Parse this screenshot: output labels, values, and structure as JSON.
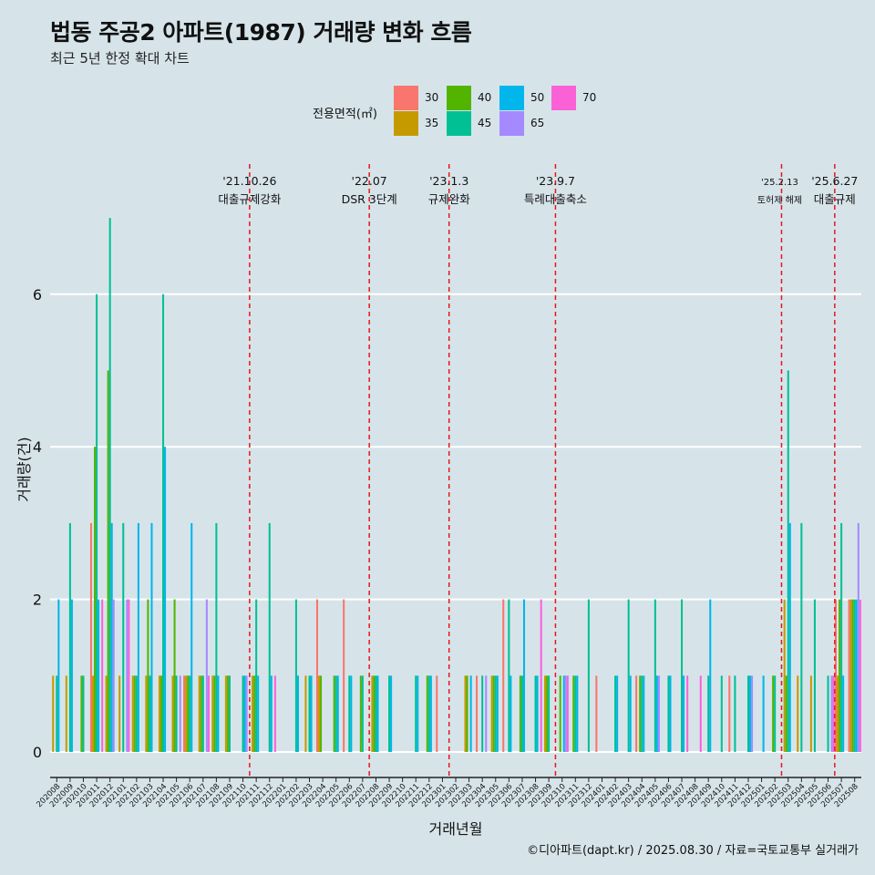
{
  "title": "법동 주공2 아파트(1987) 거래량 변화 흐름",
  "subtitle": "최근 5년 한정 확대 차트",
  "caption": "©디아파트(dapt.kr) / 2025.08.30 / 자료=국토교통부 실거래가",
  "legend": {
    "title": "전용면적(㎡)",
    "items": [
      {
        "label": "30",
        "color": "#f8766d"
      },
      {
        "label": "35",
        "color": "#c49a00"
      },
      {
        "label": "40",
        "color": "#53b400"
      },
      {
        "label": "45",
        "color": "#00c094"
      },
      {
        "label": "50",
        "color": "#00b6eb"
      },
      {
        "label": "65",
        "color": "#a58aff"
      },
      {
        "label": "70",
        "color": "#fb61d7"
      }
    ]
  },
  "chart_data": {
    "type": "bar",
    "xlabel": "거래년월",
    "ylabel": "거래량(건)",
    "ylim": [
      0,
      7
    ],
    "yticks": [
      0,
      2,
      4,
      6
    ],
    "series_names": [
      "30",
      "35",
      "40",
      "45",
      "50",
      "65",
      "70"
    ],
    "categories": [
      "202008",
      "202009",
      "202010",
      "202011",
      "202012",
      "202101",
      "202102",
      "202103",
      "202104",
      "202105",
      "202106",
      "202107",
      "202108",
      "202109",
      "202110",
      "202111",
      "202112",
      "202201",
      "202202",
      "202203",
      "202204",
      "202205",
      "202206",
      "202207",
      "202208",
      "202209",
      "202210",
      "202211",
      "202212",
      "202301",
      "202302",
      "202303",
      "202304",
      "202305",
      "202306",
      "202307",
      "202308",
      "202309",
      "202310",
      "202311",
      "202312",
      "202401",
      "202402",
      "202403",
      "202404",
      "202405",
      "202406",
      "202407",
      "202408",
      "202409",
      "202410",
      "202411",
      "202412",
      "202501",
      "202502",
      "202503",
      "202504",
      "202505",
      "202506",
      "202507",
      "202508"
    ],
    "values": [
      [
        0,
        1,
        0,
        1,
        2,
        0,
        0
      ],
      [
        0,
        1,
        0,
        3,
        2,
        0,
        0
      ],
      [
        0,
        0,
        1,
        1,
        0,
        0,
        0
      ],
      [
        3,
        1,
        4,
        6,
        2,
        0,
        2
      ],
      [
        0,
        1,
        5,
        7,
        3,
        2,
        0
      ],
      [
        0,
        1,
        0,
        3,
        0,
        2,
        2
      ],
      [
        0,
        1,
        1,
        1,
        3,
        0,
        0
      ],
      [
        0,
        1,
        2,
        1,
        3,
        0,
        0
      ],
      [
        0,
        1,
        1,
        6,
        4,
        0,
        0
      ],
      [
        0,
        1,
        2,
        1,
        0,
        1,
        0
      ],
      [
        1,
        1,
        1,
        1,
        3,
        0,
        0
      ],
      [
        0,
        1,
        1,
        1,
        0,
        2,
        1
      ],
      [
        0,
        1,
        1,
        3,
        1,
        0,
        0
      ],
      [
        0,
        1,
        1,
        1,
        0,
        0,
        0
      ],
      [
        0,
        0,
        0,
        1,
        1,
        1,
        0
      ],
      [
        0,
        1,
        1,
        2,
        1,
        0,
        0
      ],
      [
        0,
        0,
        0,
        3,
        1,
        0,
        1
      ],
      [
        0,
        0,
        0,
        0,
        0,
        0,
        0
      ],
      [
        0,
        0,
        0,
        2,
        1,
        0,
        0
      ],
      [
        0,
        1,
        0,
        1,
        1,
        0,
        0
      ],
      [
        2,
        1,
        1,
        0,
        0,
        0,
        0
      ],
      [
        0,
        0,
        1,
        1,
        1,
        0,
        0
      ],
      [
        2,
        0,
        0,
        1,
        1,
        0,
        0
      ],
      [
        0,
        0,
        1,
        1,
        0,
        0,
        0
      ],
      [
        0,
        1,
        1,
        1,
        1,
        0,
        0
      ],
      [
        0,
        0,
        0,
        1,
        1,
        0,
        0
      ],
      [
        0,
        0,
        0,
        0,
        0,
        0,
        0
      ],
      [
        0,
        0,
        0,
        1,
        1,
        0,
        0
      ],
      [
        0,
        0,
        1,
        1,
        1,
        0,
        0
      ],
      [
        1,
        0,
        0,
        0,
        0,
        0,
        0
      ],
      [
        0,
        0,
        0,
        0,
        0,
        0,
        0
      ],
      [
        0,
        1,
        1,
        0,
        1,
        0,
        0
      ],
      [
        1,
        0,
        0,
        1,
        0,
        1,
        0
      ],
      [
        0,
        1,
        1,
        1,
        1,
        0,
        0
      ],
      [
        2,
        0,
        0,
        2,
        1,
        0,
        0
      ],
      [
        0,
        0,
        1,
        1,
        2,
        0,
        0
      ],
      [
        0,
        0,
        0,
        1,
        1,
        0,
        2
      ],
      [
        0,
        1,
        1,
        1,
        0,
        0,
        0
      ],
      [
        0,
        0,
        1,
        0,
        1,
        1,
        1
      ],
      [
        0,
        0,
        1,
        1,
        1,
        0,
        0
      ],
      [
        0,
        0,
        0,
        2,
        0,
        0,
        0
      ],
      [
        1,
        0,
        0,
        0,
        0,
        0,
        0
      ],
      [
        0,
        0,
        0,
        1,
        1,
        0,
        0
      ],
      [
        0,
        0,
        0,
        2,
        1,
        0,
        0
      ],
      [
        1,
        0,
        1,
        1,
        1,
        0,
        0
      ],
      [
        0,
        0,
        0,
        2,
        1,
        1,
        0
      ],
      [
        0,
        0,
        0,
        1,
        1,
        0,
        0
      ],
      [
        0,
        0,
        0,
        2,
        1,
        0,
        1
      ],
      [
        0,
        0,
        0,
        0,
        0,
        0,
        1
      ],
      [
        0,
        0,
        0,
        1,
        2,
        0,
        0
      ],
      [
        0,
        0,
        0,
        1,
        0,
        0,
        0
      ],
      [
        1,
        0,
        0,
        1,
        0,
        0,
        0
      ],
      [
        0,
        0,
        0,
        1,
        1,
        1,
        0
      ],
      [
        0,
        0,
        0,
        0,
        1,
        0,
        0
      ],
      [
        0,
        0,
        1,
        1,
        0,
        0,
        0
      ],
      [
        0,
        2,
        1,
        5,
        3,
        0,
        0
      ],
      [
        0,
        1,
        0,
        3,
        0,
        0,
        0
      ],
      [
        0,
        1,
        0,
        2,
        0,
        0,
        0
      ],
      [
        0,
        0,
        0,
        1,
        0,
        1,
        1
      ],
      [
        2,
        1,
        2,
        3,
        1,
        0,
        0
      ],
      [
        2,
        2,
        2,
        2,
        2,
        3,
        2
      ]
    ],
    "annotations": [
      {
        "after": "202110",
        "date": "'21.10.26",
        "label": "대출규제강화"
      },
      {
        "after": "202207",
        "date": "'22.07",
        "label": "DSR 3단계"
      },
      {
        "after": "202301",
        "date": "'23.1.3",
        "label": "규제완화"
      },
      {
        "after": "202309",
        "date": "'23.9.7",
        "label": "특례대출축소"
      },
      {
        "after": "202502",
        "date": "'25.2.13",
        "label": "토허제 해제"
      },
      {
        "after": "202506",
        "date": "'25.6.27",
        "label": "대출규제"
      }
    ]
  }
}
